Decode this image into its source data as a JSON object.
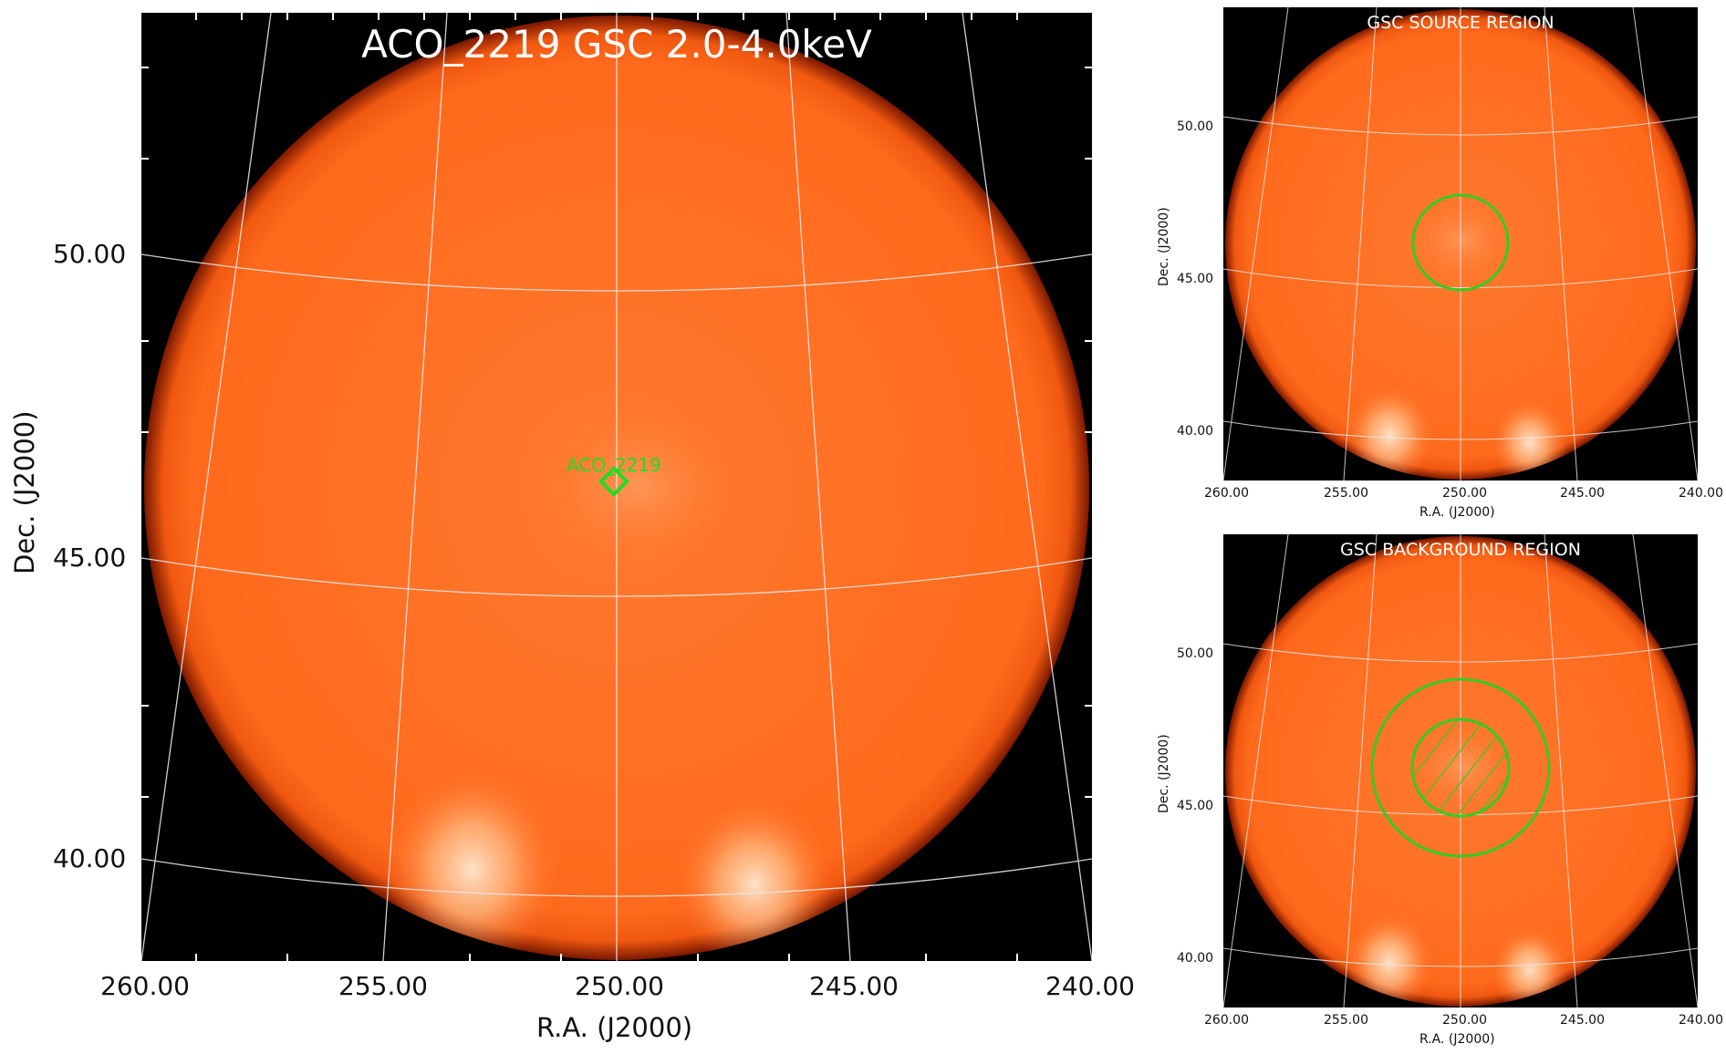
{
  "main": {
    "title": "ACO_2219 GSC 2.0-4.0keV",
    "marker_label": "ACO_2219",
    "xlabel": "R.A. (J2000)",
    "ylabel": "Dec. (J2000)",
    "xticks": [
      "260.00",
      "255.00",
      "250.00",
      "245.00",
      "240.00"
    ],
    "yticks": [
      "50.00",
      "45.00",
      "40.00"
    ]
  },
  "source_panel": {
    "title": "GSC SOURCE REGION",
    "xlabel": "R.A. (J2000)",
    "ylabel": "Dec. (J2000)",
    "xticks": [
      "260.00",
      "255.00",
      "250.00",
      "245.00",
      "240.00"
    ],
    "yticks": [
      "50.00",
      "45.00",
      "40.00"
    ]
  },
  "background_panel": {
    "title": "GSC BACKGROUND REGION",
    "xlabel": "R.A. (J2000)",
    "ylabel": "Dec. (J2000)",
    "xticks": [
      "260.00",
      "255.00",
      "250.00",
      "245.00",
      "240.00"
    ],
    "yticks": [
      "50.00",
      "45.00",
      "40.00"
    ]
  },
  "colors": {
    "sky_disk": "#ff6a1c",
    "background": "#000000",
    "region": "#33cc22",
    "marker": "#22dd22",
    "grid": "#e6e6e6"
  }
}
